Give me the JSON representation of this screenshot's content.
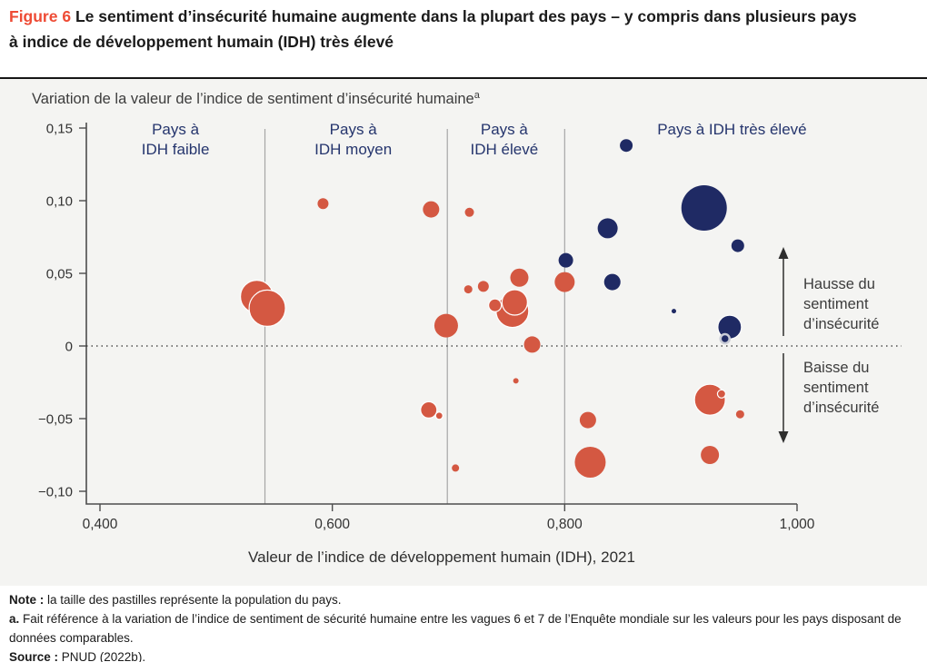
{
  "title": {
    "figure_label": "Figure 6",
    "line1": "Le sentiment d’insécurité humaine augmente dans la plupart des pays – y compris dans plusieurs pays",
    "line2": "à indice de développement humain (IDH) très élevé"
  },
  "notes": {
    "note_label": "Note :",
    "note_text": "la taille des pastilles représente la population du pays.",
    "footnote_label": "a.",
    "footnote_text": "Fait référence à la variation de l’indice de sentiment de sécurité humaine entre les vagues 6 et 7 de l’Enquête mondiale sur les valeurs pour les pays disposant de données comparables.",
    "source_label": "Source :",
    "source_text": "PNUD (2022b)."
  },
  "chart_data": {
    "type": "scatter",
    "ylabel": "Variation de la valeur de l’indice de sentiment d’insécurité humaine",
    "ylabel_sup": "a",
    "xlabel": "Valeur de l’indice de développement humain (IDH), 2021",
    "xlim": [
      0.4,
      1.0
    ],
    "ylim": [
      -0.1,
      0.15
    ],
    "x_ticks": [
      {
        "v": 0.4,
        "label": "0,400"
      },
      {
        "v": 0.6,
        "label": "0,600"
      },
      {
        "v": 0.8,
        "label": "0,800"
      },
      {
        "v": 1.0,
        "label": "1,000"
      }
    ],
    "y_ticks": [
      {
        "v": 0.15,
        "label": "0,15"
      },
      {
        "v": 0.1,
        "label": "0,10"
      },
      {
        "v": 0.05,
        "label": "0,05"
      },
      {
        "v": 0,
        "label": "0"
      },
      {
        "v": -0.05,
        "label": "−0,05"
      },
      {
        "v": -0.1,
        "label": "−0,10"
      }
    ],
    "zero_line": 0,
    "dividers": [
      0.542,
      0.699,
      0.8
    ],
    "category_labels": [
      {
        "cx": 0.465,
        "lines": [
          "Pays à",
          "IDH faible"
        ]
      },
      {
        "cx": 0.618,
        "lines": [
          "Pays à",
          "IDH moyen"
        ]
      },
      {
        "cx": 0.748,
        "lines": [
          "Pays à",
          "IDH élevé"
        ]
      },
      {
        "cx": 0.944,
        "lines": [
          "Pays à IDH très élevé"
        ]
      }
    ],
    "annotations": {
      "up": [
        "Hausse du",
        "sentiment",
        "d’insécurité"
      ],
      "down": [
        "Baisse du",
        "sentiment",
        "d’insécurité"
      ]
    },
    "colors": {
      "bubble_red": "#d45842",
      "bubble_navy": "#1f2a64",
      "label_navy": "#25356d",
      "figure_red": "#ee4b35"
    },
    "series": [
      {
        "group": "red",
        "color_key": "bubble_red",
        "points": [
          {
            "idh": 0.592,
            "delta": 0.098,
            "r": 6
          },
          {
            "idh": 0.685,
            "delta": 0.094,
            "r": 9
          },
          {
            "idh": 0.718,
            "delta": 0.092,
            "r": 5
          },
          {
            "idh": 0.535,
            "delta": 0.034,
            "r": 18,
            "stroke": true
          },
          {
            "idh": 0.544,
            "delta": 0.026,
            "r": 20,
            "stroke": true
          },
          {
            "idh": 0.717,
            "delta": 0.039,
            "r": 4.5
          },
          {
            "idh": 0.73,
            "delta": 0.041,
            "r": 6
          },
          {
            "idh": 0.761,
            "delta": 0.047,
            "r": 10
          },
          {
            "idh": 0.755,
            "delta": 0.024,
            "r": 18,
            "stroke": true
          },
          {
            "idh": 0.757,
            "delta": 0.03,
            "r": 14,
            "stroke": true
          },
          {
            "idh": 0.74,
            "delta": 0.028,
            "r": 7,
            "stroke": true
          },
          {
            "idh": 0.698,
            "delta": 0.014,
            "r": 13
          },
          {
            "idh": 0.772,
            "delta": 0.001,
            "r": 9
          },
          {
            "idh": 0.8,
            "delta": 0.044,
            "r": 11
          },
          {
            "idh": 0.758,
            "delta": -0.024,
            "r": 3
          },
          {
            "idh": 0.683,
            "delta": -0.044,
            "r": 9,
            "stroke": true
          },
          {
            "idh": 0.692,
            "delta": -0.048,
            "r": 4,
            "stroke": true
          },
          {
            "idh": 0.706,
            "delta": -0.084,
            "r": 4
          },
          {
            "idh": 0.82,
            "delta": -0.051,
            "r": 9
          },
          {
            "idh": 0.822,
            "delta": -0.08,
            "r": 17
          },
          {
            "idh": 0.925,
            "delta": -0.037,
            "r": 17,
            "stroke": true
          },
          {
            "idh": 0.935,
            "delta": -0.033,
            "r": 4.5,
            "stroke": true
          },
          {
            "idh": 0.951,
            "delta": -0.047,
            "r": 4.5
          },
          {
            "idh": 0.925,
            "delta": -0.075,
            "r": 10
          }
        ]
      },
      {
        "group": "navy",
        "color_key": "bubble_navy",
        "points": [
          {
            "idh": 0.853,
            "delta": 0.138,
            "r": 7
          },
          {
            "idh": 0.92,
            "delta": 0.095,
            "r": 25
          },
          {
            "idh": 0.837,
            "delta": 0.081,
            "r": 11
          },
          {
            "idh": 0.949,
            "delta": 0.069,
            "r": 7
          },
          {
            "idh": 0.801,
            "delta": 0.059,
            "r": 8
          },
          {
            "idh": 0.841,
            "delta": 0.044,
            "r": 9
          },
          {
            "idh": 0.894,
            "delta": 0.024,
            "r": 2.5
          },
          {
            "idh": 0.942,
            "delta": 0.013,
            "r": 13,
            "stroke": true
          },
          {
            "idh": 0.938,
            "delta": 0.005,
            "r": 5,
            "ring": true
          }
        ]
      }
    ]
  }
}
